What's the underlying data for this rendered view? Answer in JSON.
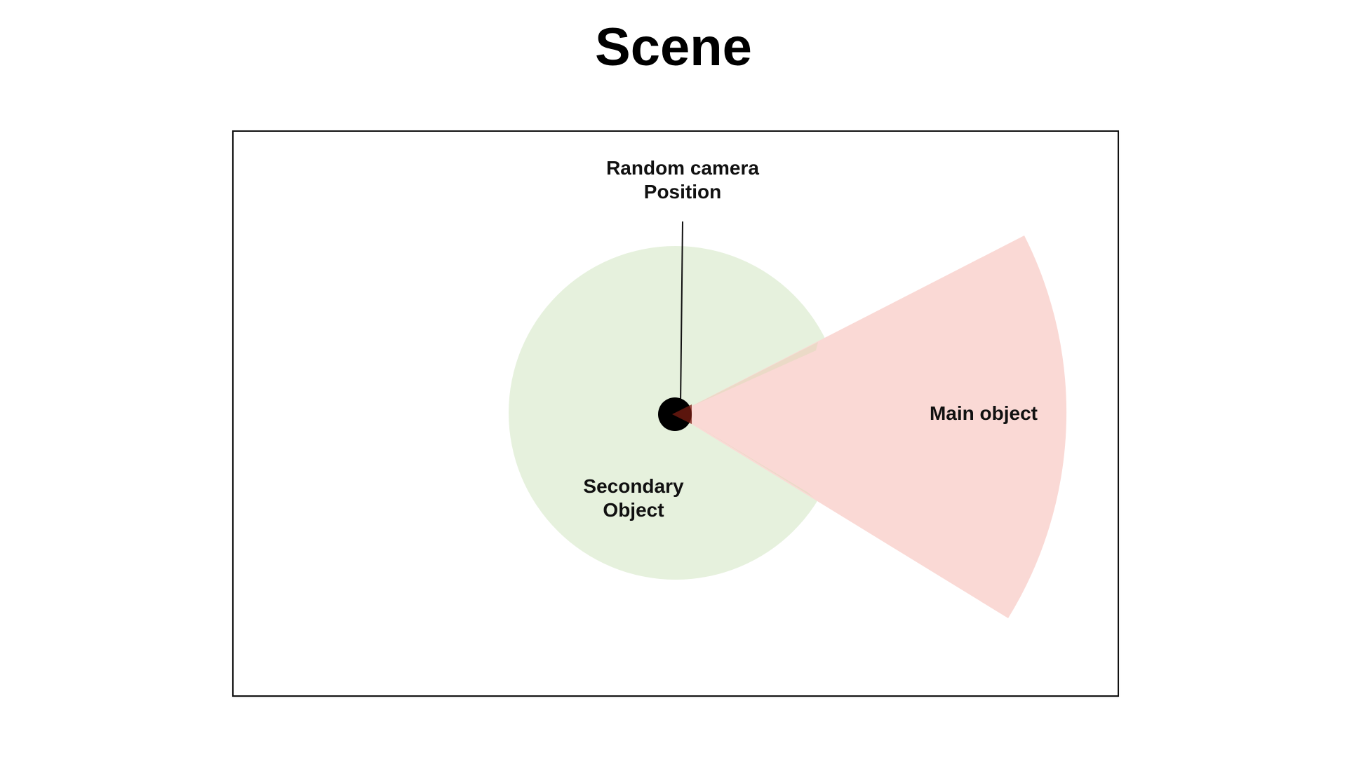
{
  "title": "Scene",
  "labels": {
    "camera_line1": "Random camera",
    "camera_line2": "Position",
    "main_object": "Main object",
    "secondary_line1": "Secondary",
    "secondary_line2": "Object"
  },
  "colors": {
    "secondary_object_fill": "#e6f1dd",
    "main_object_fill": "#fad9d5",
    "overlap_tint": "#e8d9c4",
    "camera": "#000000",
    "frame_border": "#111111"
  }
}
